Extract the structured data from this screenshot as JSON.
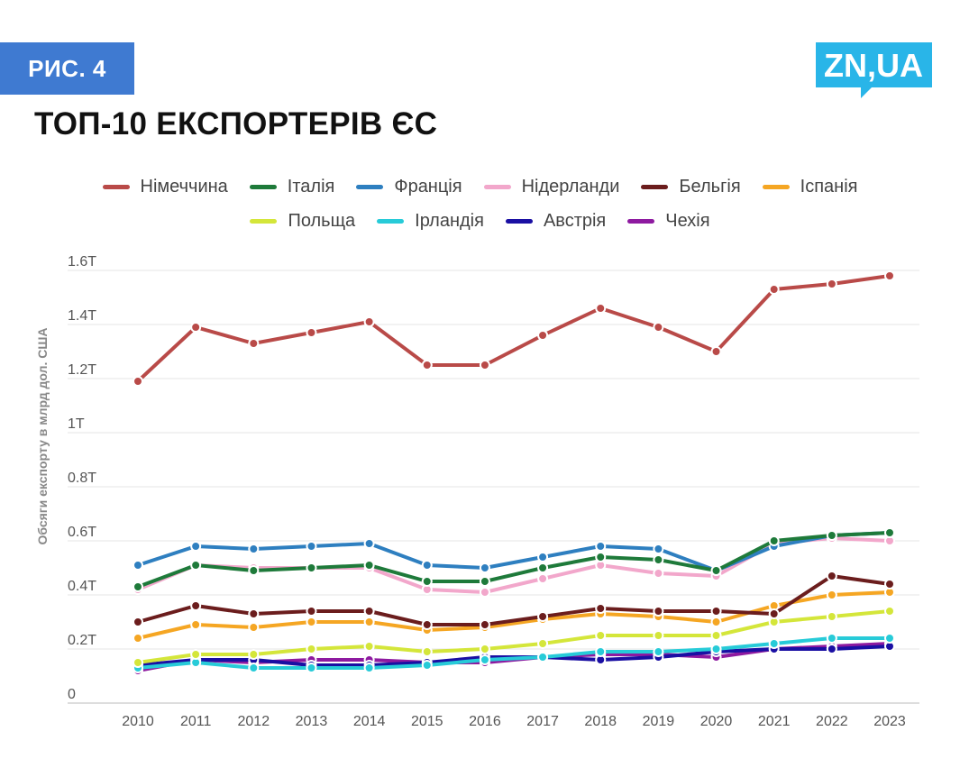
{
  "header": {
    "figure_label": "РИС. 4",
    "logo_text": "ZN,UA",
    "title": "ТОП-10 ЕКСПОРТЕРІВ ЄС"
  },
  "chart_data": {
    "type": "line",
    "title": "ТОП-10 ЕКСПОРТЕРІВ ЄС",
    "xlabel": "",
    "ylabel": "Обсяги експорту в млрд дол. США",
    "x": [
      "2010",
      "2011",
      "2012",
      "2013",
      "2014",
      "2015",
      "2016",
      "2017",
      "2018",
      "2019",
      "2020",
      "2021",
      "2022",
      "2023"
    ],
    "ylim": [
      0,
      1.6
    ],
    "yticks": [
      0,
      0.2,
      0.4,
      0.6,
      0.8,
      1,
      1.2,
      1.4,
      1.6
    ],
    "ytick_labels": [
      "0",
      "0.2T",
      "0.4T",
      "0.6T",
      "0.8T",
      "1T",
      "1.2T",
      "1.4T",
      "1.6T"
    ],
    "grid": true,
    "legend_placement": "top",
    "series": [
      {
        "name": "Німеччина",
        "color": "#b94a48",
        "values": [
          1.19,
          1.39,
          1.33,
          1.37,
          1.41,
          1.25,
          1.25,
          1.36,
          1.46,
          1.39,
          1.3,
          1.53,
          1.55,
          1.58
        ]
      },
      {
        "name": "Італія",
        "color": "#1e7a3a",
        "values": [
          0.43,
          0.51,
          0.49,
          0.5,
          0.51,
          0.45,
          0.45,
          0.5,
          0.54,
          0.53,
          0.49,
          0.6,
          0.62,
          0.63
        ]
      },
      {
        "name": "Франція",
        "color": "#2e7fc0",
        "values": [
          0.51,
          0.58,
          0.57,
          0.58,
          0.59,
          0.51,
          0.5,
          0.54,
          0.58,
          0.57,
          0.49,
          0.58,
          0.62,
          0.63
        ]
      },
      {
        "name": "Нідерланди",
        "color": "#f2a7cb",
        "values": [
          0.42,
          0.51,
          0.5,
          0.5,
          0.5,
          0.42,
          0.41,
          0.46,
          0.51,
          0.48,
          0.47,
          0.59,
          0.61,
          0.6
        ]
      },
      {
        "name": "Бельгія",
        "color": "#6b1d1d",
        "values": [
          0.3,
          0.36,
          0.33,
          0.34,
          0.34,
          0.29,
          0.29,
          0.32,
          0.35,
          0.34,
          0.34,
          0.33,
          0.47,
          0.44
        ]
      },
      {
        "name": "Іспанія",
        "color": "#f5a623",
        "values": [
          0.24,
          0.29,
          0.28,
          0.3,
          0.3,
          0.27,
          0.28,
          0.31,
          0.33,
          0.32,
          0.3,
          0.36,
          0.4,
          0.41
        ]
      },
      {
        "name": "Польща",
        "color": "#d4e63a",
        "values": [
          0.15,
          0.18,
          0.18,
          0.2,
          0.21,
          0.19,
          0.2,
          0.22,
          0.25,
          0.25,
          0.25,
          0.3,
          0.32,
          0.34
        ]
      },
      {
        "name": "Ірландія",
        "color": "#27cbd8",
        "values": [
          0.13,
          0.15,
          0.13,
          0.13,
          0.13,
          0.14,
          0.16,
          0.17,
          0.19,
          0.19,
          0.2,
          0.22,
          0.24,
          0.24
        ]
      },
      {
        "name": "Австрія",
        "color": "#1a0fa3",
        "values": [
          0.14,
          0.16,
          0.16,
          0.14,
          0.14,
          0.15,
          0.17,
          0.17,
          0.16,
          0.17,
          0.19,
          0.2,
          0.2,
          0.21
        ]
      },
      {
        "name": "Чехія",
        "color": "#8e1aa0",
        "values": [
          0.12,
          0.16,
          0.15,
          0.16,
          0.16,
          0.15,
          0.15,
          0.17,
          0.18,
          0.18,
          0.17,
          0.2,
          0.21,
          0.22
        ]
      }
    ]
  }
}
